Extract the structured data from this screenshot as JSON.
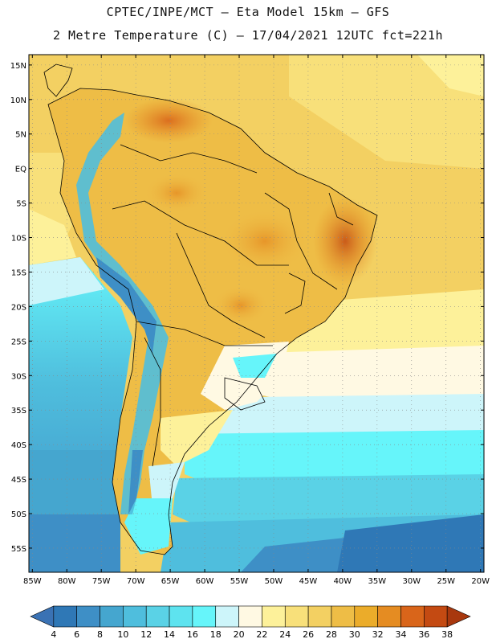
{
  "header": {
    "line1": "CPTEC/INPE/MCT –  Eta Model 15km – GFS",
    "line2": "2 Metre Temperature (C) – 17/04/2021 12UTC fct=221h"
  },
  "map": {
    "lon_range": [
      -85.5,
      -19.5
    ],
    "lat_range": [
      -58.5,
      16.5
    ],
    "lat_ticks": [
      {
        "value": 15,
        "label": "15N"
      },
      {
        "value": 10,
        "label": "10N"
      },
      {
        "value": 5,
        "label": "5N"
      },
      {
        "value": 0,
        "label": "EQ"
      },
      {
        "value": -5,
        "label": "5S"
      },
      {
        "value": -10,
        "label": "10S"
      },
      {
        "value": -15,
        "label": "15S"
      },
      {
        "value": -20,
        "label": "20S"
      },
      {
        "value": -25,
        "label": "25S"
      },
      {
        "value": -30,
        "label": "30S"
      },
      {
        "value": -35,
        "label": "35S"
      },
      {
        "value": -40,
        "label": "40S"
      },
      {
        "value": -45,
        "label": "45S"
      },
      {
        "value": -50,
        "label": "50S"
      },
      {
        "value": -55,
        "label": "55S"
      }
    ],
    "lon_ticks": [
      {
        "value": -85,
        "label": "85W"
      },
      {
        "value": -80,
        "label": "80W"
      },
      {
        "value": -75,
        "label": "75W"
      },
      {
        "value": -70,
        "label": "70W"
      },
      {
        "value": -65,
        "label": "65W"
      },
      {
        "value": -60,
        "label": "60W"
      },
      {
        "value": -55,
        "label": "55W"
      },
      {
        "value": -50,
        "label": "50W"
      },
      {
        "value": -45,
        "label": "45W"
      },
      {
        "value": -40,
        "label": "40W"
      },
      {
        "value": -35,
        "label": "35W"
      },
      {
        "value": -30,
        "label": "30W"
      },
      {
        "value": -25,
        "label": "25W"
      },
      {
        "value": -20,
        "label": "20W"
      }
    ]
  },
  "colorbar": {
    "unit": "C",
    "labels": [
      "4",
      "6",
      "8",
      "10",
      "12",
      "14",
      "16",
      "18",
      "20",
      "22",
      "24",
      "26",
      "28",
      "30",
      "32",
      "34",
      "36",
      "38"
    ],
    "colors": [
      "#3a72b4",
      "#2f78b6",
      "#3e8fc6",
      "#45a6cf",
      "#4fbedd",
      "#5ad2e6",
      "#5ee3ef",
      "#66f5fa",
      "#cdf5fa",
      "#fff9e3",
      "#fdf19a",
      "#f8e07a",
      "#f3d062",
      "#eebd46",
      "#ebac2a",
      "#e58c22",
      "#d9651a",
      "#c44a12",
      "#a8380e"
    ]
  }
}
